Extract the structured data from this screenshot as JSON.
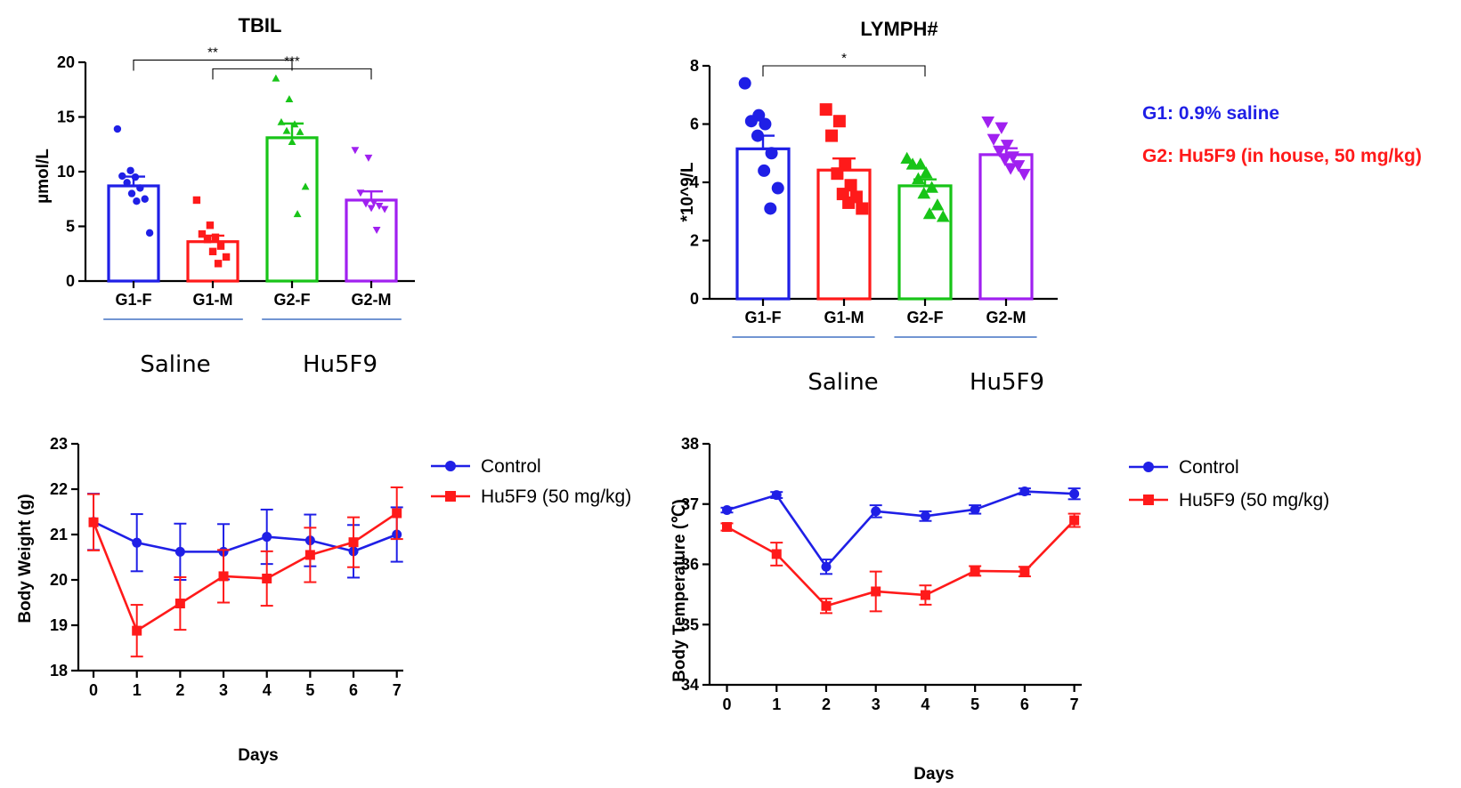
{
  "annotations": {
    "g1_label": "G1: 0.9% saline",
    "g2_label": "G2: Hu5F9 (in house, 50 mg/kg)",
    "g1_color": "#1f1fe6",
    "g2_color": "#ff1a1a"
  },
  "chart_data": [
    {
      "type": "bar",
      "title": "TBIL",
      "ylabel": "µmol/L",
      "xlabel": "",
      "ylim": [
        0,
        20
      ],
      "yticks": [
        0,
        5,
        10,
        15,
        20
      ],
      "categories": [
        "G1-F",
        "G1-M",
        "G2-F",
        "G2-M"
      ],
      "colors": [
        "#1f1fe6",
        "#ff1a1a",
        "#18c418",
        "#a020f0"
      ],
      "markers": [
        "circle",
        "square",
        "triangle",
        "triangle-down"
      ],
      "values": [
        8.7,
        3.6,
        13.1,
        7.4
      ],
      "sem": [
        0.85,
        0.55,
        1.3,
        0.8
      ],
      "points": [
        [
          13.9,
          10.1,
          9.6,
          9.5,
          9.0,
          8.5,
          8.0,
          7.5,
          7.3,
          4.4
        ],
        [
          7.4,
          5.1,
          4.3,
          4.0,
          3.8,
          3.2,
          2.7,
          2.2,
          1.6
        ],
        [
          18.5,
          16.6,
          14.5,
          14.3,
          13.7,
          13.6,
          12.7,
          8.6,
          6.1
        ],
        [
          12.0,
          11.3,
          8.1,
          7.2,
          7.1,
          6.9,
          6.7,
          6.6,
          4.7
        ]
      ],
      "groups": [
        {
          "label": "Saline",
          "categories": [
            0,
            1
          ]
        },
        {
          "label": "Hu5F9",
          "categories": [
            2,
            3
          ]
        }
      ],
      "significance": [
        {
          "from": 0,
          "to": 2,
          "y": 20.2,
          "label": "**"
        },
        {
          "from": 1,
          "to": 3,
          "y": 19.4,
          "label": "***"
        }
      ]
    },
    {
      "type": "bar",
      "title": "LYMPH#",
      "ylabel": "*10^9/L",
      "xlabel": "",
      "ylim": [
        0,
        8
      ],
      "yticks": [
        0,
        2,
        4,
        6,
        8
      ],
      "categories": [
        "G1-F",
        "G1-M",
        "G2-F",
        "G2-M"
      ],
      "colors": [
        "#1f1fe6",
        "#ff1a1a",
        "#18c418",
        "#a020f0"
      ],
      "markers": [
        "circle",
        "square",
        "triangle",
        "triangle-down"
      ],
      "values": [
        5.15,
        4.42,
        3.88,
        4.95
      ],
      "sem": [
        0.45,
        0.4,
        0.22,
        0.22
      ],
      "points": [
        [
          7.4,
          6.3,
          6.1,
          6.0,
          5.6,
          5.0,
          4.4,
          3.8,
          3.1
        ],
        [
          6.5,
          6.1,
          5.6,
          4.6,
          4.3,
          3.9,
          3.6,
          3.5,
          3.3,
          3.1
        ],
        [
          4.8,
          4.6,
          4.6,
          4.3,
          4.1,
          3.8,
          3.6,
          3.2,
          2.9,
          2.8
        ],
        [
          6.1,
          5.9,
          5.5,
          5.3,
          5.1,
          4.9,
          4.8,
          4.6,
          4.5,
          4.3
        ]
      ],
      "groups": [
        {
          "label": "Saline",
          "categories": [
            0,
            1
          ]
        },
        {
          "label": "Hu5F9",
          "categories": [
            2,
            3
          ]
        }
      ],
      "significance": [
        {
          "from": 0,
          "to": 2,
          "y": 8.0,
          "label": "*"
        }
      ]
    },
    {
      "type": "line",
      "title": "",
      "xlabel": "Days",
      "ylabel": "Body Weight (g)",
      "xlim": [
        -0.35,
        7.15
      ],
      "ylim": [
        18,
        23
      ],
      "xticks": [
        0,
        1,
        2,
        3,
        4,
        5,
        6,
        7
      ],
      "yticks": [
        18,
        19,
        20,
        21,
        22,
        23
      ],
      "x": [
        0,
        1,
        2,
        3,
        4,
        5,
        6,
        7
      ],
      "legend": "top-right",
      "series": [
        {
          "name": "Control",
          "color": "#1f1fe6",
          "marker": "circle",
          "values": [
            21.28,
            20.82,
            20.62,
            20.62,
            20.95,
            20.87,
            20.63,
            21.0
          ],
          "err": [
            0.62,
            0.63,
            0.62,
            0.61,
            0.6,
            0.57,
            0.58,
            0.6
          ]
        },
        {
          "name": "Hu5F9 (50 mg/kg)",
          "color": "#ff1a1a",
          "marker": "square",
          "values": [
            21.27,
            18.88,
            19.48,
            20.08,
            20.03,
            20.55,
            20.83,
            21.47
          ],
          "err": [
            0.62,
            0.57,
            0.58,
            0.58,
            0.6,
            0.6,
            0.55,
            0.57
          ]
        }
      ]
    },
    {
      "type": "line",
      "title": "",
      "xlabel": "Days",
      "ylabel": "Body Temperature (℃)",
      "xlim": [
        -0.35,
        7.15
      ],
      "ylim": [
        34,
        38
      ],
      "xticks": [
        0,
        1,
        2,
        3,
        4,
        5,
        6,
        7
      ],
      "yticks": [
        34,
        35,
        36,
        37,
        38
      ],
      "x": [
        0,
        1,
        2,
        3,
        4,
        5,
        6,
        7
      ],
      "legend": "top-right",
      "series": [
        {
          "name": "Control",
          "color": "#1f1fe6",
          "marker": "circle",
          "values": [
            36.9,
            37.15,
            35.96,
            36.88,
            36.8,
            36.91,
            37.21,
            37.17
          ],
          "err": [
            0.04,
            0.05,
            0.12,
            0.1,
            0.08,
            0.07,
            0.05,
            0.09
          ]
        },
        {
          "name": "Hu5F9 (50 mg/kg)",
          "color": "#ff1a1a",
          "marker": "square",
          "values": [
            36.62,
            36.17,
            35.31,
            35.55,
            35.49,
            35.89,
            35.88,
            36.73
          ],
          "err": [
            0.06,
            0.19,
            0.12,
            0.33,
            0.16,
            0.08,
            0.08,
            0.11
          ]
        }
      ]
    }
  ]
}
